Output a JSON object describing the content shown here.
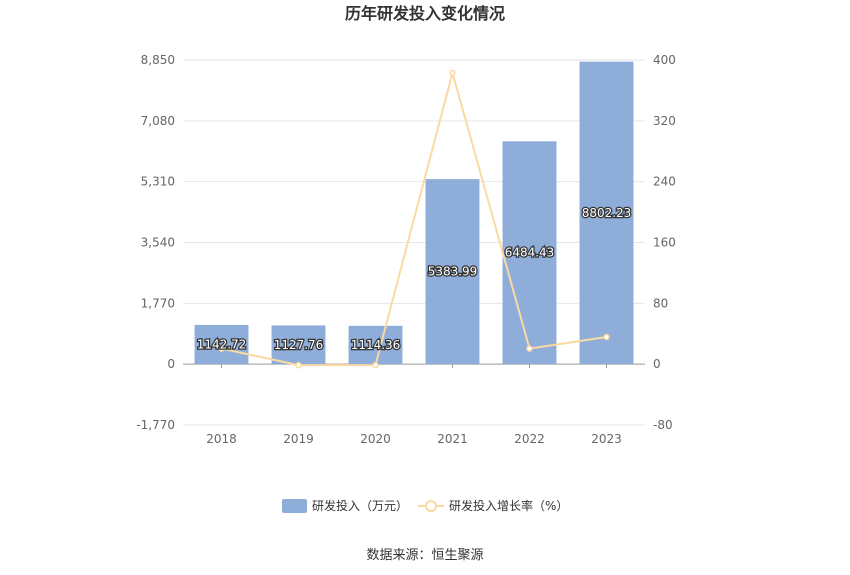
{
  "chart_data": {
    "type": "bar",
    "title": "历年研发投入变化情况",
    "categories": [
      "2018",
      "2019",
      "2020",
      "2021",
      "2022",
      "2023"
    ],
    "series": [
      {
        "name": "研发投入（万元）",
        "type": "bar",
        "axis": "left",
        "values": [
          1142.72,
          1127.76,
          1114.36,
          5383.99,
          6484.43,
          8802.23
        ],
        "labels": [
          "1142.72",
          "1127.76",
          "1114.36",
          "5383.99",
          "6484.43",
          "8802.23"
        ],
        "color": "#8eadd9"
      },
      {
        "name": "研发投入增长率（%）",
        "type": "line",
        "axis": "right",
        "values": [
          20.5,
          -1.31,
          -1.19,
          383.14,
          20.44,
          35.74
        ],
        "color": "#fbd9a3"
      }
    ],
    "left_axis": {
      "ticks": [
        "8,850",
        "7,080",
        "5,310",
        "3,540",
        "1,770",
        "0",
        "-1,770"
      ],
      "values": [
        8850,
        7080,
        5310,
        3540,
        1770,
        0,
        -1770
      ],
      "ylim": [
        -1770,
        8850
      ]
    },
    "right_axis": {
      "ticks": [
        "400",
        "320",
        "240",
        "160",
        "80",
        "0",
        "-80"
      ],
      "values": [
        400,
        320,
        240,
        160,
        80,
        0,
        -80
      ],
      "ylim": [
        -80,
        400
      ]
    },
    "grid": true,
    "legend_position": "bottom"
  },
  "footer": {
    "source": "数据来源：恒生聚源"
  }
}
